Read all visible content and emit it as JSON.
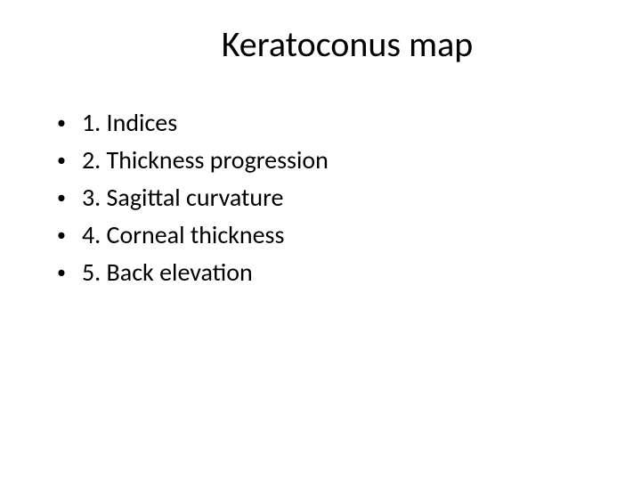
{
  "slide": {
    "title": "Keratoconus map",
    "title_fontsize": 40,
    "title_color": "#000000",
    "background_color": "#ffffff",
    "bullet_marker": "•",
    "bullet_fontsize": 28,
    "bullet_color": "#000000",
    "items": [
      {
        "text": "1. Indices"
      },
      {
        "text": "2. Thickness progression"
      },
      {
        "text": "3. Sagittal curvature"
      },
      {
        "text": "4. Corneal thickness"
      },
      {
        "text": "5. Back elevation"
      }
    ]
  }
}
